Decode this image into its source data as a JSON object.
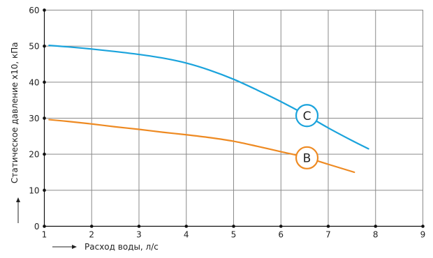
{
  "chart_data": {
    "type": "line",
    "xlabel": "Расход воды, л/с",
    "ylabel": "Статическое давление х10, кПа",
    "xlim": [
      1,
      9
    ],
    "ylim": [
      0,
      60
    ],
    "x_ticks": [
      "1",
      "2",
      "3",
      "4",
      "5",
      "6",
      "7",
      "8",
      "9"
    ],
    "y_ticks": [
      "0",
      "10",
      "20",
      "30",
      "40",
      "50",
      "60"
    ],
    "grid": true,
    "series": [
      {
        "name": "C",
        "color": "#1aa3dc",
        "x": [
          1.1,
          1.5,
          2.0,
          2.5,
          3.0,
          3.5,
          4.0,
          4.5,
          5.0,
          5.5,
          6.0,
          6.5,
          7.0,
          7.5,
          7.85
        ],
        "y": [
          50.2,
          49.8,
          49.2,
          48.5,
          47.7,
          46.7,
          45.3,
          43.3,
          40.8,
          37.8,
          34.6,
          31.1,
          27.3,
          23.8,
          21.5
        ],
        "label_at": 6.55
      },
      {
        "name": "B",
        "color": "#ee8a22",
        "x": [
          1.1,
          1.5,
          2.0,
          2.5,
          3.0,
          3.5,
          4.0,
          4.5,
          5.0,
          5.5,
          6.0,
          6.5,
          7.0,
          7.55
        ],
        "y": [
          29.6,
          29.1,
          28.4,
          27.6,
          26.9,
          26.1,
          25.4,
          24.6,
          23.6,
          22.2,
          20.7,
          19.2,
          17.2,
          15.0
        ],
        "label_at": 6.55
      }
    ]
  }
}
